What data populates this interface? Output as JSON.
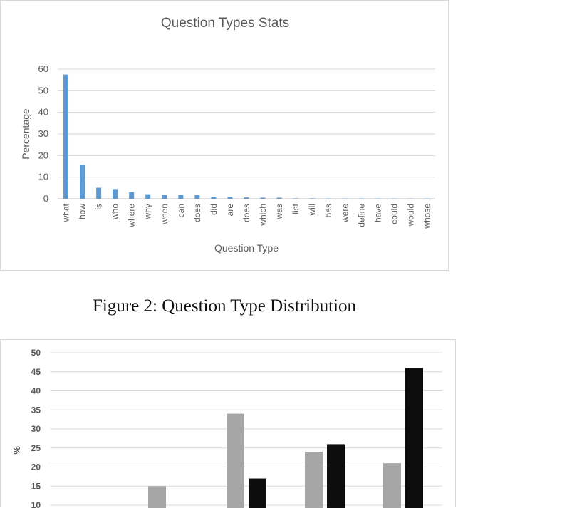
{
  "chart_data": [
    {
      "type": "bar",
      "title": "Question Types Stats",
      "xlabel": "Question Type",
      "ylabel": "Percentage",
      "ylim": [
        0,
        60
      ],
      "yticks": [
        0,
        10,
        20,
        30,
        40,
        50,
        60
      ],
      "grid": true,
      "bar_color": "#5b9bd5",
      "categories": [
        "what",
        "how",
        "is",
        "who",
        "where",
        "why",
        "when",
        "can",
        "does",
        "did",
        "are",
        "does",
        "which",
        "was",
        "list",
        "will",
        "has",
        "were",
        "define",
        "have",
        "could",
        "would",
        "whose"
      ],
      "values": [
        57.5,
        15.7,
        5.1,
        4.5,
        3.1,
        2.1,
        1.8,
        1.8,
        1.7,
        0.9,
        0.9,
        0.6,
        0.5,
        0.5,
        0.2,
        0.2,
        0.1,
        0.1,
        0.1,
        0.1,
        0.1,
        0.1,
        0.1
      ]
    },
    {
      "type": "bar",
      "title": "",
      "xlabel": "",
      "ylabel": "%",
      "ylim": [
        10,
        50
      ],
      "yticks": [
        10,
        15,
        20,
        25,
        30,
        35,
        40,
        45,
        50
      ],
      "grid": true,
      "groups": 5,
      "series": [
        {
          "color": "#a6a6a6",
          "values": [
            null,
            15,
            34,
            24,
            21
          ]
        },
        {
          "color": "#0d0d0d",
          "values": [
            null,
            null,
            17,
            26,
            46
          ]
        }
      ]
    }
  ],
  "caption": "Figure 2: Question Type Distribution"
}
